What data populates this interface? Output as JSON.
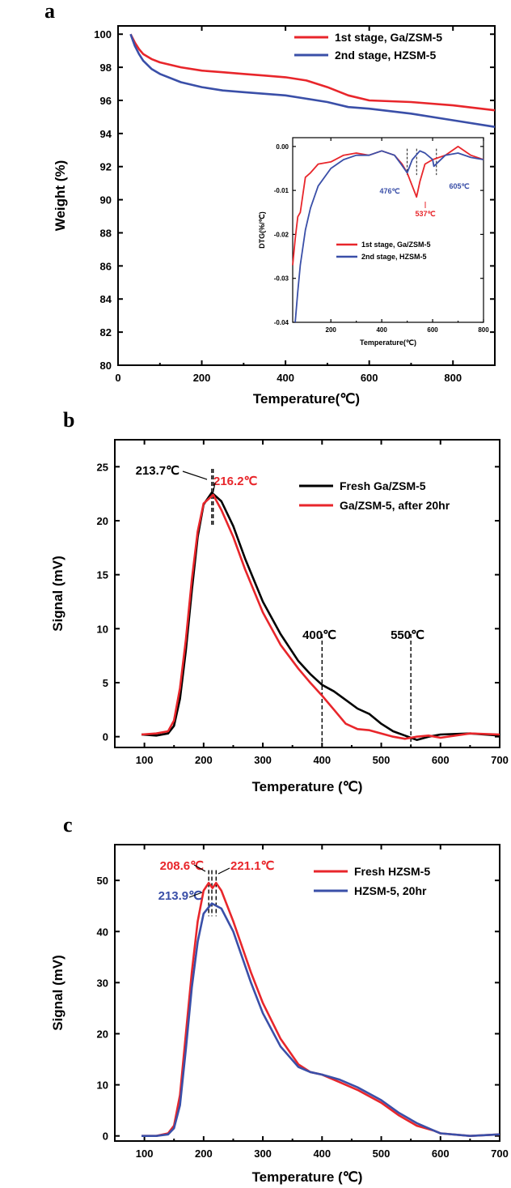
{
  "chart_data": [
    {
      "panel": "a",
      "type": "line",
      "xlabel": "Temperature(℃)",
      "ylabel": "Weight (%)",
      "xlim": [
        0,
        900
      ],
      "ylim": [
        80,
        100.5
      ],
      "xticks": [
        0,
        200,
        400,
        600,
        800
      ],
      "yticks": [
        80,
        82,
        84,
        86,
        88,
        90,
        92,
        94,
        96,
        98,
        100
      ],
      "legend_position": "top-right",
      "series": [
        {
          "name": "1st stage, Ga/ZSM-5",
          "color": "#e8262b",
          "x": [
            30,
            40,
            50,
            60,
            80,
            100,
            150,
            200,
            250,
            300,
            350,
            400,
            450,
            500,
            550,
            600,
            700,
            800,
            900
          ],
          "y": [
            100.0,
            99.5,
            99.1,
            98.8,
            98.5,
            98.3,
            98.0,
            97.8,
            97.7,
            97.6,
            97.5,
            97.4,
            97.2,
            96.8,
            96.3,
            96.0,
            95.9,
            95.7,
            95.4
          ]
        },
        {
          "name": "2nd stage, HZSM-5",
          "color": "#3a4fa8",
          "x": [
            30,
            40,
            50,
            60,
            80,
            100,
            150,
            200,
            250,
            300,
            350,
            400,
            450,
            500,
            550,
            600,
            700,
            800,
            900
          ],
          "y": [
            100.0,
            99.3,
            98.8,
            98.4,
            97.9,
            97.6,
            97.1,
            96.8,
            96.6,
            96.5,
            96.4,
            96.3,
            96.1,
            95.9,
            95.6,
            95.5,
            95.2,
            94.8,
            94.4
          ]
        }
      ],
      "inset": {
        "type": "line",
        "xlabel": "Temperature(℃)",
        "ylabel": "DTG(%/℃)",
        "xlim": [
          50,
          800
        ],
        "ylim": [
          -0.04,
          0.002
        ],
        "xticks": [
          200,
          400,
          600,
          800
        ],
        "yticks": [
          "0.00",
          "-0.01",
          "-0.02",
          "-0.03",
          "-0.04"
        ],
        "ytick_values": [
          0.0,
          -0.01,
          -0.02,
          -0.03,
          -0.04
        ],
        "legend_position": "bottom-right",
        "annotations": [
          {
            "text": "476℃",
            "x": 500,
            "y": -0.0055,
            "color": "#3a4fa8"
          },
          {
            "text": "537℃",
            "x": 537,
            "y": -0.0115,
            "color": "#e8262b"
          },
          {
            "text": "605℃",
            "x": 615,
            "y": -0.0045,
            "color": "#3a4fa8"
          }
        ],
        "series": [
          {
            "name": "1st stage, Ga/ZSM-5",
            "color": "#e8262b",
            "x": [
              50,
              60,
              70,
              80,
              100,
              120,
              150,
              200,
              250,
              300,
              350,
              400,
              450,
              480,
              500,
              520,
              537,
              550,
              570,
              600,
              650,
              700,
              750,
              800
            ],
            "y": [
              -0.027,
              -0.021,
              -0.016,
              -0.015,
              -0.007,
              -0.006,
              -0.004,
              -0.0035,
              -0.002,
              -0.0015,
              -0.002,
              -0.001,
              -0.002,
              -0.004,
              -0.006,
              -0.009,
              -0.0115,
              -0.008,
              -0.004,
              -0.003,
              -0.002,
              0.0,
              -0.002,
              -0.003
            ]
          },
          {
            "name": "2nd stage, HZSM-5",
            "color": "#3a4fa8",
            "x": [
              60,
              70,
              80,
              100,
              120,
              150,
              200,
              250,
              300,
              350,
              400,
              450,
              476,
              500,
              520,
              550,
              570,
              600,
              605,
              650,
              700,
              750,
              800
            ],
            "y": [
              -0.04,
              -0.033,
              -0.027,
              -0.019,
              -0.014,
              -0.009,
              -0.005,
              -0.003,
              -0.002,
              -0.002,
              -0.001,
              -0.002,
              -0.004,
              -0.006,
              -0.003,
              -0.001,
              -0.0015,
              -0.003,
              -0.0045,
              -0.002,
              -0.0015,
              -0.0025,
              -0.003
            ]
          }
        ]
      }
    },
    {
      "panel": "b",
      "type": "line",
      "xlabel": "Temperature (℃)",
      "ylabel": "Signal (mV)",
      "xlim": [
        50,
        700
      ],
      "ylim": [
        -1,
        27.5
      ],
      "xticks": [
        100,
        200,
        300,
        400,
        500,
        600,
        700
      ],
      "yticks": [
        0,
        5,
        10,
        15,
        20,
        25
      ],
      "legend_position": "top-right",
      "annotations": [
        {
          "text": "213.7℃",
          "x": 213.7,
          "color": "#000000"
        },
        {
          "text": "216.2℃",
          "x": 216.2,
          "color": "#e8262b"
        },
        {
          "text": "400℃",
          "x": 400,
          "color": "#000000"
        },
        {
          "text": "550℃",
          "x": 550,
          "color": "#000000"
        }
      ],
      "vlines": [
        213.7,
        216.2,
        400,
        550
      ],
      "series": [
        {
          "name": "Fresh Ga/ZSM-5",
          "color": "#000000",
          "x": [
            95,
            120,
            140,
            150,
            160,
            170,
            180,
            190,
            200,
            213.7,
            230,
            250,
            270,
            300,
            330,
            360,
            380,
            400,
            420,
            440,
            460,
            480,
            500,
            520,
            540,
            560,
            580,
            600,
            650,
            700
          ],
          "y": [
            0.2,
            0.1,
            0.3,
            1.0,
            3.5,
            8.0,
            13.5,
            18.5,
            21.5,
            22.6,
            21.8,
            19.5,
            16.5,
            12.5,
            9.5,
            7.0,
            5.8,
            4.8,
            4.2,
            3.4,
            2.6,
            2.1,
            1.2,
            0.5,
            0.1,
            -0.3,
            0.0,
            0.2,
            0.3,
            0.1
          ]
        },
        {
          "name": "Ga/ZSM-5, after 20hr",
          "color": "#e8262b",
          "x": [
            95,
            120,
            140,
            150,
            160,
            170,
            180,
            190,
            200,
            216.2,
            230,
            250,
            270,
            300,
            330,
            360,
            380,
            400,
            420,
            440,
            460,
            480,
            500,
            520,
            540,
            560,
            580,
            600,
            650,
            700
          ],
          "y": [
            0.2,
            0.3,
            0.5,
            1.5,
            4.5,
            9.0,
            14.5,
            19.0,
            21.6,
            22.4,
            21.0,
            18.5,
            15.5,
            11.5,
            8.5,
            6.3,
            5.0,
            3.8,
            2.5,
            1.2,
            0.7,
            0.6,
            0.3,
            0.0,
            -0.2,
            0.0,
            0.1,
            -0.1,
            0.3,
            0.2
          ]
        }
      ]
    },
    {
      "panel": "c",
      "type": "line",
      "xlabel": "Temperature (℃)",
      "ylabel": "Signal (mV)",
      "xlim": [
        50,
        700
      ],
      "ylim": [
        -1,
        57
      ],
      "xticks": [
        100,
        200,
        300,
        400,
        500,
        600,
        700
      ],
      "yticks": [
        0,
        10,
        20,
        30,
        40,
        50
      ],
      "legend_position": "top-right",
      "annotations": [
        {
          "text": "208.6℃",
          "x": 208.6,
          "color": "#e8262b"
        },
        {
          "text": "221.1℃",
          "x": 221.1,
          "color": "#e8262b"
        },
        {
          "text": "213.9℃",
          "x": 213.9,
          "color": "#3a4fa8"
        }
      ],
      "vlines": [
        208.6,
        213.9,
        221.1
      ],
      "series": [
        {
          "name": "Fresh HZSM-5",
          "color": "#e8262b",
          "x": [
            95,
            120,
            140,
            150,
            160,
            170,
            180,
            190,
            200,
            208.6,
            215,
            221.1,
            230,
            250,
            280,
            300,
            330,
            360,
            380,
            400,
            430,
            460,
            500,
            530,
            560,
            590,
            600,
            650,
            700
          ],
          "y": [
            0.0,
            0.0,
            0.5,
            2.0,
            8.0,
            20.0,
            32.0,
            42.0,
            48.0,
            49.5,
            48.5,
            49.5,
            48.0,
            42.0,
            32.0,
            26.0,
            19.0,
            14.0,
            12.5,
            12.0,
            10.5,
            9.0,
            6.5,
            4.0,
            2.0,
            1.0,
            0.5,
            0.0,
            0.3
          ]
        },
        {
          "name": "HZSM-5, 20hr",
          "color": "#3a4fa8",
          "x": [
            95,
            120,
            140,
            150,
            160,
            170,
            180,
            190,
            200,
            213.9,
            230,
            250,
            280,
            300,
            330,
            360,
            380,
            400,
            430,
            460,
            500,
            530,
            560,
            590,
            600,
            650,
            700
          ],
          "y": [
            0.0,
            0.0,
            0.3,
            1.5,
            6.0,
            17.0,
            29.0,
            38.0,
            43.5,
            45.5,
            44.5,
            40.0,
            30.0,
            24.0,
            17.5,
            13.5,
            12.5,
            12.0,
            11.0,
            9.5,
            7.0,
            4.5,
            2.5,
            1.0,
            0.5,
            0.0,
            0.3
          ]
        }
      ]
    }
  ]
}
